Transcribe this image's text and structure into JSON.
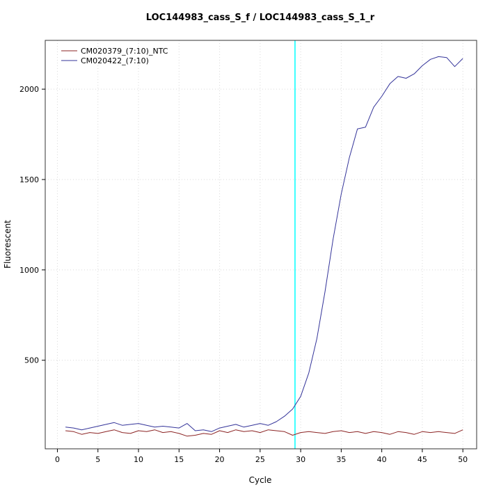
{
  "chart_data": {
    "type": "line",
    "title": "LOC144983_cass_S_f / LOC144983_cass_S_1_r",
    "xlabel": "Cycle",
    "ylabel": "Fluorescent",
    "xlim": [
      -1.5,
      51.7
    ],
    "ylim": [
      10,
      2270
    ],
    "x_ticks": [
      0,
      5,
      10,
      15,
      20,
      25,
      30,
      35,
      40,
      45,
      50
    ],
    "y_ticks": [
      500,
      1000,
      1500,
      2000
    ],
    "grid": true,
    "grid_color": "#d9d9d9",
    "box_color": "#333333",
    "legend_position": "top-left",
    "threshold_line": {
      "x": 29.3,
      "color": "#00FFFF"
    },
    "x": [
      1,
      2,
      3,
      4,
      5,
      6,
      7,
      8,
      9,
      10,
      11,
      12,
      13,
      14,
      15,
      16,
      17,
      18,
      19,
      20,
      21,
      22,
      23,
      24,
      25,
      26,
      27,
      28,
      29,
      30,
      31,
      32,
      33,
      34,
      35,
      36,
      37,
      38,
      39,
      40,
      41,
      42,
      43,
      44,
      45,
      46,
      47,
      48,
      49,
      50
    ],
    "series": [
      {
        "name": "CM020379_(7:10)_NTC",
        "color": "#8B2323",
        "values": [
          110,
          105,
          90,
          100,
          95,
          105,
          115,
          100,
          95,
          110,
          105,
          115,
          100,
          105,
          95,
          80,
          85,
          95,
          90,
          110,
          100,
          115,
          105,
          110,
          100,
          115,
          110,
          105,
          85,
          100,
          105,
          100,
          95,
          105,
          110,
          100,
          105,
          95,
          105,
          100,
          90,
          105,
          100,
          90,
          105,
          100,
          105,
          100,
          95,
          115
        ]
      },
      {
        "name": "CM020422_(7:10)",
        "color": "#333399",
        "values": [
          130,
          125,
          115,
          125,
          135,
          145,
          155,
          140,
          145,
          150,
          140,
          130,
          135,
          130,
          125,
          150,
          110,
          115,
          105,
          125,
          135,
          145,
          130,
          140,
          150,
          140,
          160,
          190,
          230,
          300,
          430,
          620,
          880,
          1170,
          1420,
          1620,
          1780,
          1790,
          1900,
          1960,
          2030,
          2070,
          2060,
          2085,
          2130,
          2165,
          2180,
          2175,
          2125,
          2170
        ]
      }
    ]
  }
}
